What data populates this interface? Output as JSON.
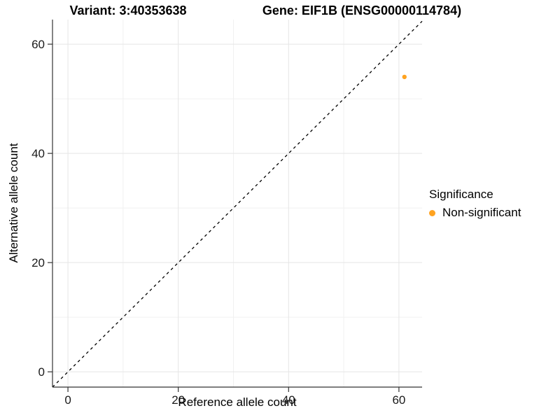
{
  "title": {
    "variant": "Variant: 3:40353638",
    "gene": "Gene: EIF1B (ENSG00000114784)"
  },
  "chart_data": {
    "type": "scatter",
    "title": "Variant: 3:40353638   Gene: EIF1B (ENSG00000114784)",
    "xlabel": "Reference allele count",
    "ylabel": "Alternative allele count",
    "xlim": [
      -2.8,
      64.2
    ],
    "ylim": [
      -2.8,
      64.5
    ],
    "x_ticks": [
      0,
      20,
      40,
      60
    ],
    "y_ticks": [
      0,
      20,
      40,
      60
    ],
    "x_minor_ticks": [
      10,
      30,
      50
    ],
    "y_minor_ticks": [
      10,
      30,
      50
    ],
    "grid": "major and minor, light gray on white",
    "identity_line": {
      "style": "dashed",
      "color": "#000000",
      "from": [
        -2.8,
        -2.8
      ],
      "to": [
        64.2,
        64.2
      ]
    },
    "series": [
      {
        "name": "Non-significant",
        "color": "#FFA320",
        "point_radius": 3.2,
        "points": [
          [
            61,
            54
          ]
        ]
      }
    ],
    "legend": {
      "title": "Significance",
      "position": "right",
      "entries": [
        {
          "label": "Non-significant",
          "color": "#FFA320"
        }
      ]
    }
  },
  "colors": {
    "point_orange": "#FFA320",
    "grid_major": "#E5E5E5",
    "grid_minor": "#F1F1F1",
    "axis_line": "#333333",
    "identity_line": "#000000",
    "background": "#FFFFFF"
  }
}
